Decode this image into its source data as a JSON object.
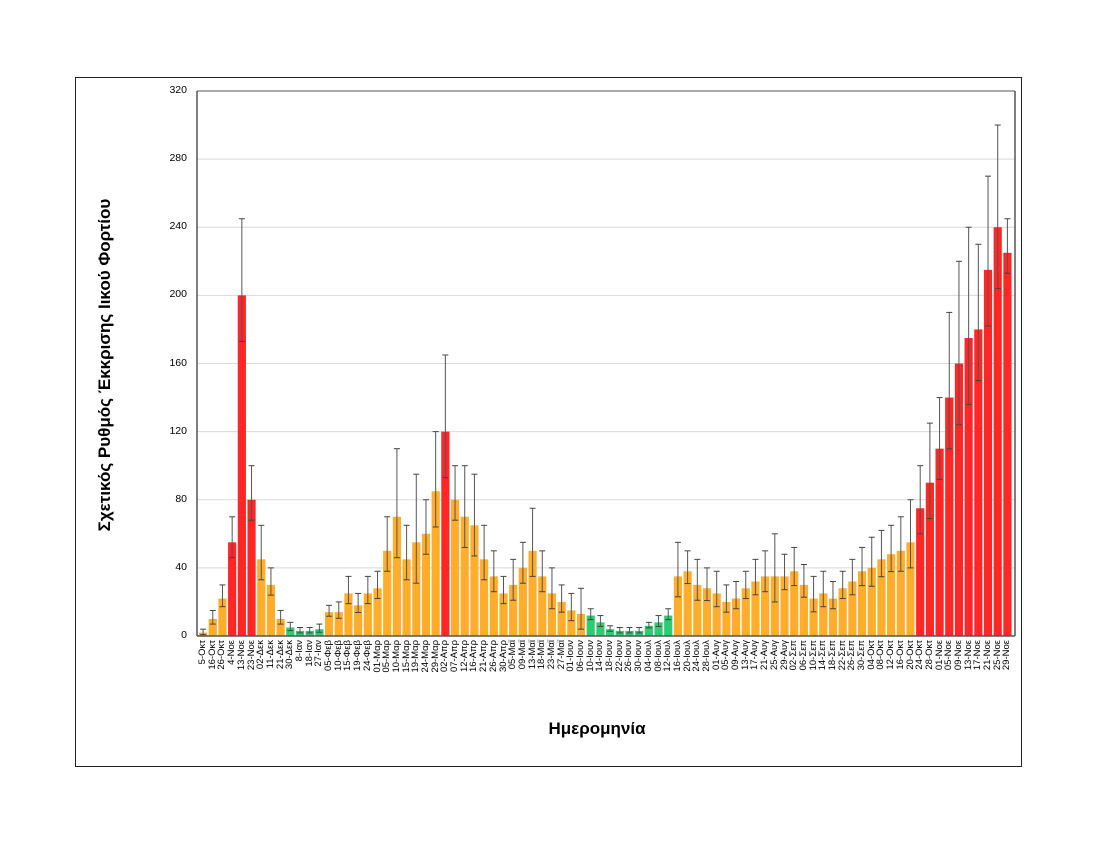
{
  "chart_data": {
    "type": "bar",
    "title": "",
    "ylabel": "Σχετικός Ρυθμός Έκκρισης Ιικού Φορτίου",
    "xlabel": "Ημερομηνία",
    "ylim": [
      0,
      320
    ],
    "yticks": [
      0,
      40,
      80,
      120,
      160,
      200,
      240,
      280,
      320
    ],
    "grid": "horizontal",
    "error_bars": true,
    "level_colors": {
      "low": "#2ECC71",
      "medium": "#FFAD2A",
      "high": "#FF2626"
    },
    "categories": [
      "5-Οκτ",
      "16-Οκτ",
      "26-Οκτ",
      "4-Νοε",
      "13-Νοε",
      "23-Νοε",
      "02-Δεκ",
      "11-Δεκ",
      "21-Δεκ",
      "30-Δεκ",
      "8-Ιαν",
      "18-Ιαν",
      "27-Ιαν",
      "05-Φεβ",
      "10-Φεβ",
      "15-Φεβ",
      "19-Φεβ",
      "24-Φεβ",
      "01-Μαρ",
      "05-Μαρ",
      "10-Μαρ",
      "15-Μαρ",
      "19-Μαρ",
      "24-Μαρ",
      "29-Μαρ",
      "02-Απρ",
      "07-Απρ",
      "12-Απρ",
      "16-Απρ",
      "21-Απρ",
      "26-Απρ",
      "30-Απρ",
      "05-Μαϊ",
      "09-Μαϊ",
      "13-Μαϊ",
      "18-Μαϊ",
      "23-Μαϊ",
      "27-Μαϊ",
      "01-Ιουν",
      "06-Ιουν",
      "10-Ιουν",
      "14-Ιουν",
      "18-Ιουν",
      "22-Ιουν",
      "26-Ιουν",
      "30-Ιουν",
      "04-Ιουλ",
      "08-Ιουλ",
      "12-Ιουλ",
      "16-Ιουλ",
      "20-Ιουλ",
      "24-Ιουλ",
      "28-Ιουλ",
      "01-Αυγ",
      "05-Αυγ",
      "09-Αυγ",
      "13-Αυγ",
      "17-Αυγ",
      "21-Αυγ",
      "25-Αυγ",
      "29-Αυγ",
      "02-Σεπ",
      "06-Σεπ",
      "10-Σεπ",
      "14-Σεπ",
      "18-Σεπ",
      "22-Σεπ",
      "26-Σεπ",
      "30-Σεπ",
      "04-Οκτ",
      "08-Οκτ",
      "12-Οκτ",
      "16-Οκτ",
      "20-Οκτ",
      "24-Οκτ",
      "28-Οκτ",
      "01-Νοε",
      "05-Νοε",
      "09-Νοε",
      "13-Νοε",
      "17-Νοε",
      "21-Νοε",
      "25-Νοε",
      "29-Νοε"
    ],
    "values": [
      2,
      10,
      22,
      55,
      200,
      80,
      45,
      30,
      10,
      5,
      3,
      3,
      4,
      14,
      14,
      25,
      18,
      25,
      28,
      50,
      70,
      45,
      55,
      60,
      85,
      120,
      80,
      70,
      65,
      45,
      35,
      25,
      30,
      40,
      50,
      35,
      25,
      20,
      15,
      13,
      12,
      8,
      4,
      3,
      3,
      3,
      6,
      8,
      12,
      35,
      38,
      30,
      28,
      25,
      20,
      22,
      28,
      32,
      35,
      35,
      35,
      38,
      30,
      22,
      25,
      22,
      28,
      32,
      38,
      40,
      45,
      48,
      50,
      55,
      75,
      90,
      110,
      140,
      160,
      175,
      180,
      215,
      240,
      225
    ],
    "error_upper": [
      4,
      15,
      30,
      70,
      245,
      100,
      65,
      40,
      15,
      8,
      5,
      5,
      7,
      18,
      20,
      35,
      25,
      35,
      38,
      70,
      110,
      65,
      95,
      80,
      120,
      165,
      100,
      100,
      95,
      65,
      50,
      35,
      45,
      55,
      75,
      50,
      40,
      30,
      25,
      28,
      16,
      12,
      6,
      5,
      5,
      5,
      8,
      12,
      16,
      55,
      50,
      45,
      40,
      38,
      30,
      32,
      38,
      45,
      50,
      60,
      48,
      52,
      42,
      35,
      38,
      32,
      38,
      45,
      52,
      58,
      62,
      65,
      70,
      80,
      100,
      125,
      140,
      190,
      220,
      240,
      230,
      270,
      300,
      245
    ],
    "levels": [
      "medium",
      "medium",
      "medium",
      "high",
      "high",
      "high",
      "medium",
      "medium",
      "medium",
      "low",
      "low",
      "low",
      "low",
      "medium",
      "medium",
      "medium",
      "medium",
      "medium",
      "medium",
      "medium",
      "medium",
      "medium",
      "medium",
      "medium",
      "medium",
      "high",
      "medium",
      "medium",
      "medium",
      "medium",
      "medium",
      "medium",
      "medium",
      "medium",
      "medium",
      "medium",
      "medium",
      "medium",
      "medium",
      "medium",
      "low",
      "low",
      "low",
      "low",
      "low",
      "low",
      "low",
      "low",
      "low",
      "medium",
      "medium",
      "medium",
      "medium",
      "medium",
      "medium",
      "medium",
      "medium",
      "medium",
      "medium",
      "medium",
      "medium",
      "medium",
      "medium",
      "medium",
      "medium",
      "medium",
      "medium",
      "medium",
      "medium",
      "medium",
      "medium",
      "medium",
      "medium",
      "medium",
      "high",
      "high",
      "high",
      "high",
      "high",
      "high",
      "high",
      "high",
      "high",
      "high"
    ]
  }
}
